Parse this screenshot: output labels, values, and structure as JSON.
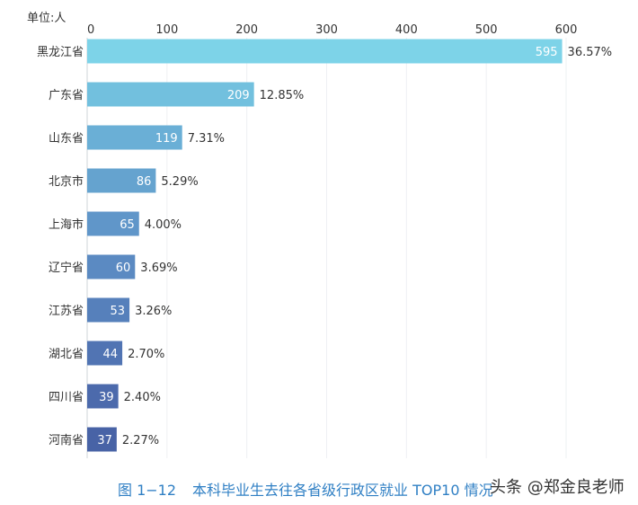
{
  "chart_data": {
    "type": "bar",
    "orientation": "horizontal",
    "unit_label": "单位:人",
    "categories": [
      "黑龙江省",
      "广东省",
      "山东省",
      "北京市",
      "上海市",
      "辽宁省",
      "江苏省",
      "湖北省",
      "四川省",
      "河南省"
    ],
    "values": [
      595,
      209,
      119,
      86,
      65,
      60,
      53,
      44,
      39,
      37
    ],
    "percent_labels": [
      "36.57%",
      "12.85%",
      "7.31%",
      "5.29%",
      "4.00%",
      "3.69%",
      "3.26%",
      "2.70%",
      "2.40%",
      "2.27%"
    ],
    "xlim": [
      0,
      600
    ],
    "xticks": [
      0,
      100,
      200,
      300,
      400,
      500,
      600
    ],
    "axis_position": "top",
    "grid": true,
    "colors": [
      "#7dd3e8",
      "#72c0de",
      "#6aafd6",
      "#65a3cf",
      "#6096c9",
      "#5b8ac2",
      "#5680bb",
      "#5174b3",
      "#4c6aac",
      "#4863a6"
    ]
  },
  "caption": {
    "figure_no": "图 1−12",
    "title": "本科毕业生去往各省级行政区就业 TOP10 情况"
  },
  "watermark": "头条 @郑金良老师"
}
